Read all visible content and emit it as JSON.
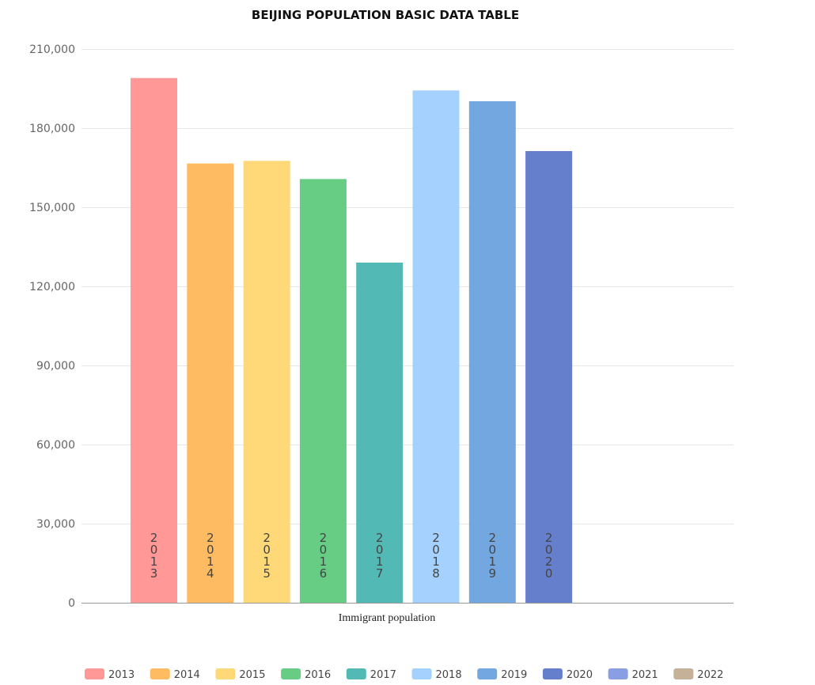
{
  "chart_data": {
    "type": "bar",
    "title": "BEIJING POPULATION BASIC DATA TABLE",
    "xlabel": "Immigrant population",
    "ylabel": "",
    "ylim": [
      0,
      210000
    ],
    "yticks": [
      0,
      30000,
      60000,
      90000,
      120000,
      150000,
      180000,
      210000
    ],
    "ytick_labels": [
      "0",
      "30,000",
      "60,000",
      "90,000",
      "120,000",
      "150,000",
      "180,000",
      "210,000"
    ],
    "categories": [
      "2013",
      "2014",
      "2015",
      "2016",
      "2017",
      "2018",
      "2019",
      "2020",
      "2021",
      "2022"
    ],
    "values": [
      199000,
      166600,
      167600,
      160700,
      129000,
      194300,
      190200,
      171300,
      null,
      null
    ],
    "colors": [
      "#ff9896",
      "#ffbb62",
      "#ffd977",
      "#67cd85",
      "#52b9b4",
      "#a4d1fd",
      "#73a7e0",
      "#667fcd",
      "#8a9fe3",
      "#c4b198"
    ],
    "legend_position": "bottom",
    "grid": true
  }
}
